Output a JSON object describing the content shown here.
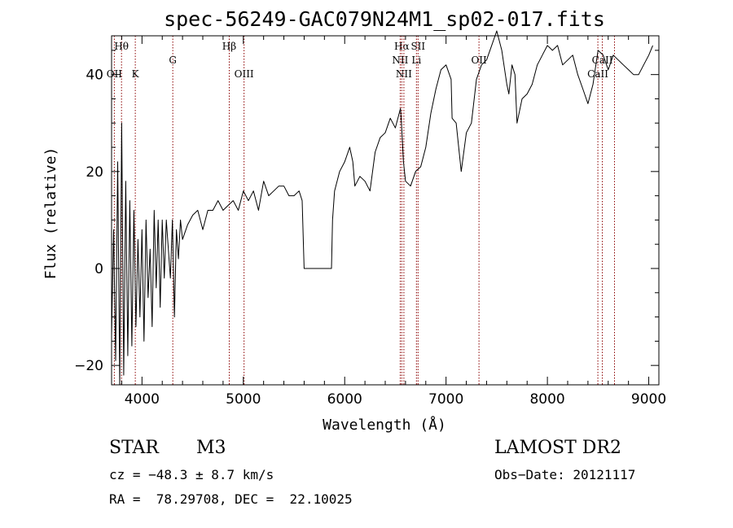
{
  "chart_data": {
    "type": "line",
    "title": "spec-56249-GAC079N24M1_sp02-017.fits",
    "xlabel": "Wavelength (Å)",
    "ylabel": "Flux (relative)",
    "xlim": [
      3700,
      9100
    ],
    "ylim": [
      -24,
      48
    ],
    "x_ticks": [
      4000,
      5000,
      6000,
      7000,
      8000,
      9000
    ],
    "y_ticks": [
      -20,
      0,
      20,
      40
    ],
    "x_minor_step": 200,
    "y_minor_step": 5,
    "grid": false,
    "legend": "none",
    "colors": {
      "spectrum": "#000000",
      "lines": "#8b0000"
    },
    "series": [
      {
        "x": [
          3700,
          3720,
          3740,
          3760,
          3780,
          3800,
          3820,
          3840,
          3860,
          3880,
          3900,
          3920,
          3940,
          3960,
          3980,
          4000,
          4020,
          4040,
          4060,
          4080,
          4100,
          4120,
          4140,
          4160,
          4180,
          4200,
          4220,
          4240,
          4260,
          4280,
          4300,
          4320,
          4340,
          4360,
          4380,
          4400,
          4450,
          4500,
          4550,
          4600,
          4650,
          4700,
          4750,
          4800,
          4850,
          4900,
          4950,
          5000,
          5050,
          5100,
          5150,
          5200,
          5250,
          5300,
          5350,
          5400,
          5450,
          5500,
          5550,
          5580,
          5600,
          5700,
          5800,
          5870,
          5880,
          5900,
          5950,
          6000,
          6050,
          6080,
          6100,
          6150,
          6200,
          6250,
          6300,
          6350,
          6400,
          6450,
          6500,
          6550,
          6560,
          6580,
          6600,
          6650,
          6700,
          6750,
          6800,
          6850,
          6900,
          6950,
          7000,
          7050,
          7060,
          7100,
          7150,
          7200,
          7250,
          7300,
          7350,
          7400,
          7450,
          7500,
          7550,
          7600,
          7620,
          7650,
          7680,
          7700,
          7750,
          7800,
          7850,
          7900,
          7950,
          8000,
          8050,
          8100,
          8150,
          8200,
          8250,
          8300,
          8350,
          8400,
          8450,
          8500,
          8550,
          8600,
          8650,
          8700,
          8750,
          8800,
          8850,
          8900,
          8950,
          9000,
          9040
        ],
        "y": [
          -14,
          8,
          -19,
          22,
          -24,
          30,
          -22,
          18,
          -18,
          14,
          -16,
          12,
          -12,
          6,
          -10,
          8,
          -15,
          10,
          -6,
          4,
          -12,
          12,
          -4,
          10,
          -8,
          10,
          -2,
          10,
          4,
          -2,
          10,
          -10,
          8,
          2,
          10,
          6,
          9,
          11,
          12,
          8,
          12,
          12,
          14,
          12,
          13,
          14,
          12,
          16,
          14,
          16,
          12,
          18,
          15,
          16,
          17,
          17,
          15,
          15,
          16,
          14,
          0,
          0,
          0,
          0,
          10,
          16,
          20,
          22,
          25,
          22,
          17,
          19,
          18,
          16,
          24,
          27,
          28,
          31,
          29,
          33,
          30,
          22,
          18,
          17,
          20,
          21,
          25,
          32,
          37,
          41,
          42,
          39,
          31,
          30,
          20,
          28,
          30,
          39,
          42,
          43,
          46,
          49,
          45,
          38,
          36,
          42,
          40,
          30,
          35,
          36,
          38,
          42,
          44,
          46,
          45,
          46,
          42,
          43,
          44,
          40,
          37,
          34,
          38,
          45,
          44,
          41,
          44,
          43,
          42,
          41,
          40,
          40,
          42,
          44,
          46
        ]
      }
    ],
    "line_markers": [
      {
        "label": "Hθ",
        "x": 3798,
        "row": 1
      },
      {
        "label": "OII",
        "x": 3727,
        "row": 2
      },
      {
        "label": "K",
        "x": 3934,
        "row": 2
      },
      {
        "label": "G",
        "x": 4304,
        "row": 1.5
      },
      {
        "label": "Hβ",
        "x": 4861,
        "row": 1
      },
      {
        "label": "OIII",
        "x": 5007,
        "row": 2
      },
      {
        "label": "Hα",
        "x": 6563,
        "row": 1
      },
      {
        "label": "SII",
        "x": 6724,
        "row": 1
      },
      {
        "label": "NII",
        "x": 6548,
        "row": 1.5
      },
      {
        "label": "Li",
        "x": 6708,
        "row": 1.5
      },
      {
        "label": "NII",
        "x": 6584,
        "row": 2
      },
      {
        "label": "OII",
        "x": 7325,
        "row": 1.5
      },
      {
        "label": "CaII",
        "x": 8542,
        "row": 1.5
      },
      {
        "label": "CaII",
        "x": 8498,
        "row": 2
      },
      {
        "label": "",
        "x": 8662,
        "row": 0
      }
    ]
  },
  "info": {
    "class": "STAR",
    "subclass": "M3",
    "survey": "LAMOST DR2",
    "cz": "cz = −48.3 ± 8.7 km/s",
    "obs_date": "Obs−Date: 20121117",
    "coords": "RA =  78.29708, DEC =  22.10025"
  }
}
